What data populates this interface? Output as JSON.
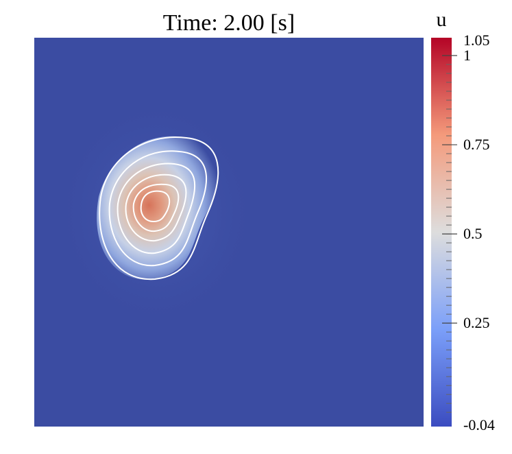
{
  "figure": {
    "title": "Time: 2.00 [s]",
    "field_name": "u"
  },
  "colorbar": {
    "min_label": "-0.04",
    "max_label": "1.05",
    "min": -0.04,
    "max": 1.05,
    "labeled_ticks": [
      {
        "value": 1,
        "label": "1"
      },
      {
        "value": 0.75,
        "label": "0.75"
      },
      {
        "value": 0.5,
        "label": "0.5"
      },
      {
        "value": 0.25,
        "label": "0.25"
      }
    ],
    "colors": {
      "low": "#3b4cc0",
      "mid": "#dddddd",
      "high": "#b40426"
    }
  },
  "field": {
    "background_value": -0.04,
    "peak_value": 0.68,
    "contour_count": 6,
    "contour_color": "#ffffff"
  }
}
